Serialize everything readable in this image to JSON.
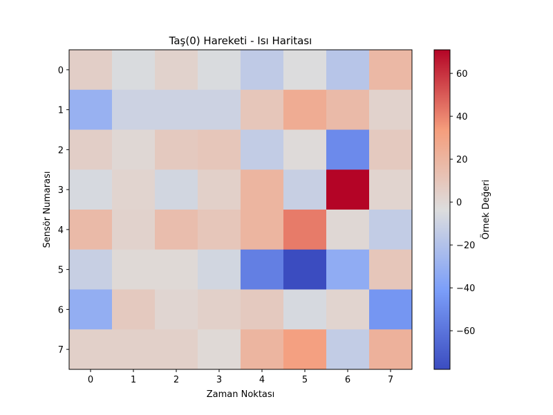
{
  "chart_data": {
    "type": "heatmap",
    "title": "Taş(0) Hareketi - Isı Haritası",
    "xlabel": "Zaman Noktası",
    "ylabel": "Sensör Numarası",
    "x_categories": [
      "0",
      "1",
      "2",
      "3",
      "4",
      "5",
      "6",
      "7"
    ],
    "y_categories": [
      "0",
      "1",
      "2",
      "3",
      "4",
      "5",
      "6",
      "7"
    ],
    "values": [
      [
        5,
        -5,
        3,
        -5,
        -15,
        -4,
        -18,
        18
      ],
      [
        -30,
        -10,
        -10,
        -10,
        10,
        25,
        17,
        3
      ],
      [
        5,
        0,
        8,
        10,
        -14,
        -2,
        -50,
        8
      ],
      [
        -6,
        2,
        -8,
        4,
        20,
        -12,
        71,
        2
      ],
      [
        17,
        3,
        15,
        10,
        20,
        42,
        0,
        -14
      ],
      [
        -12,
        -1,
        -1,
        -8,
        -55,
        -78,
        -33,
        10
      ],
      [
        -32,
        8,
        1,
        4,
        8,
        -6,
        2,
        -45
      ],
      [
        4,
        4,
        4,
        -1,
        20,
        32,
        -14,
        22
      ]
    ],
    "vmin": -78,
    "vmax": 71,
    "colorbar": {
      "label": "Örnek Değeri",
      "ticks": [
        -60,
        -40,
        -20,
        0,
        20,
        40,
        60
      ],
      "tick_labels": [
        "−60",
        "−40",
        "−20",
        "0",
        "20",
        "40",
        "60"
      ]
    },
    "colormap": "coolwarm"
  }
}
